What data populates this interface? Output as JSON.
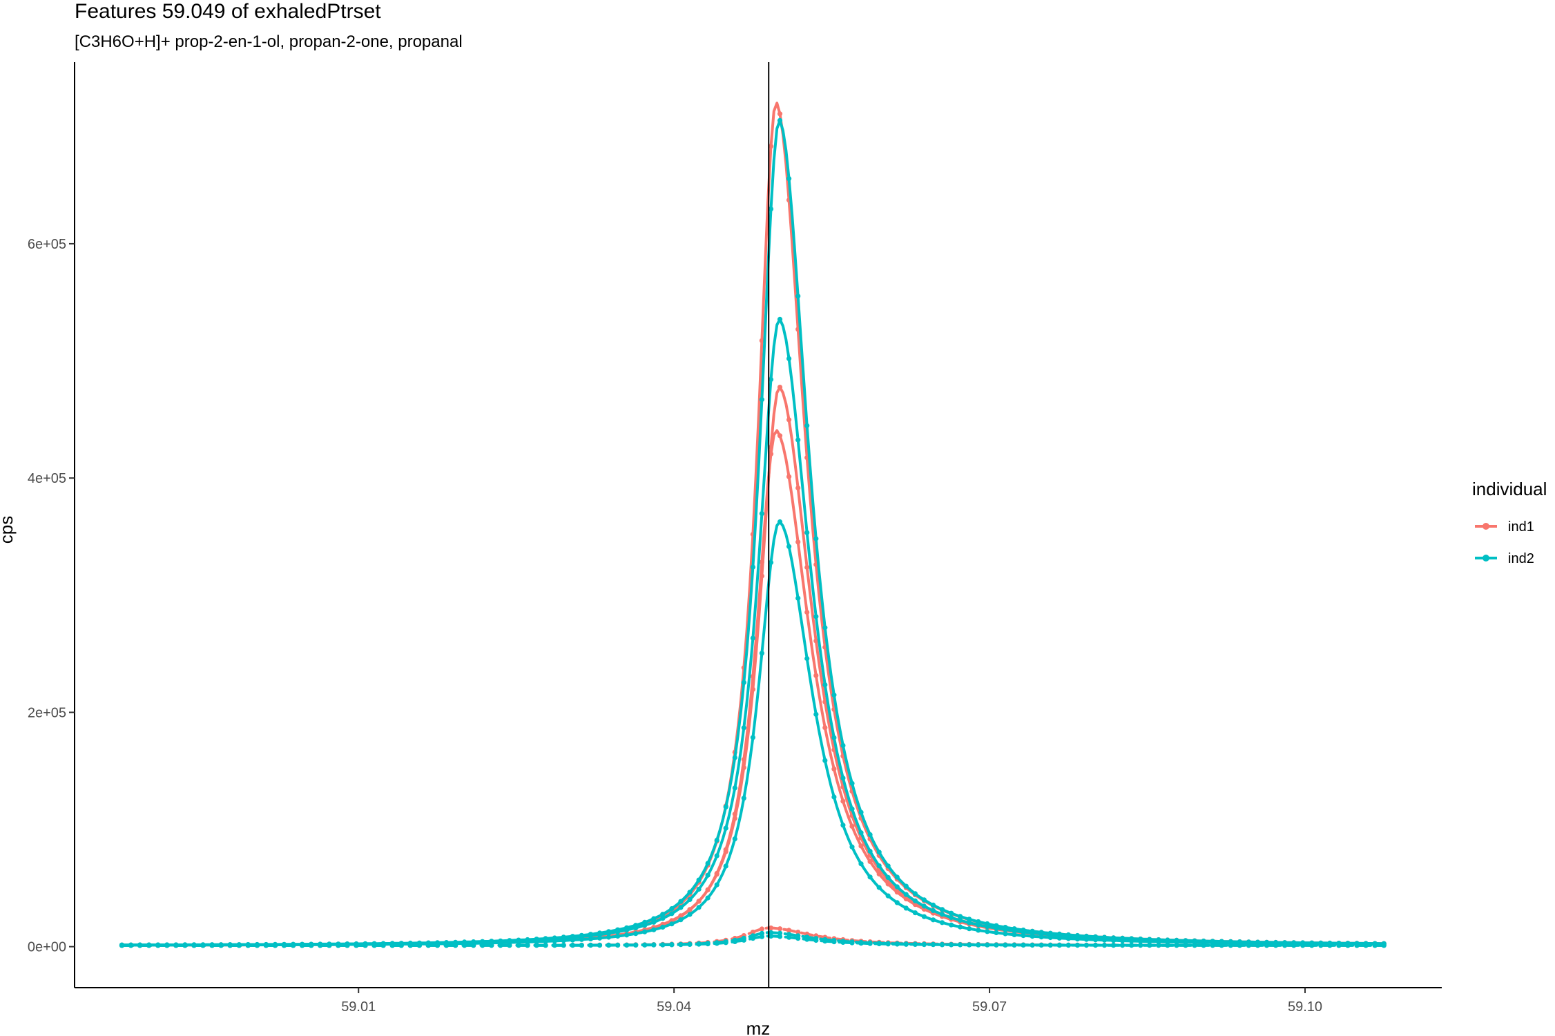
{
  "chart_data": {
    "type": "line",
    "title": "Features 59.049 of exhaledPtrset",
    "subtitle": "[C3H6O+H]+ prop-2-en-1-ol, propan-2-one, propanal",
    "xlabel": "mz",
    "ylabel": "cps",
    "xlim": [
      58.983,
      59.113
    ],
    "ylim": [
      -35000,
      755000
    ],
    "x_ticks": [
      {
        "value": 59.01,
        "label": "59.01"
      },
      {
        "value": 59.04,
        "label": "59.04"
      },
      {
        "value": 59.07,
        "label": "59.07"
      },
      {
        "value": 59.1,
        "label": "59.10"
      }
    ],
    "y_ticks": [
      {
        "value": 0,
        "label": "0e+00"
      },
      {
        "value": 200000,
        "label": "2e+05"
      },
      {
        "value": 400000,
        "label": "4e+05"
      },
      {
        "value": 600000,
        "label": "6e+05"
      }
    ],
    "reference_line": {
      "x": 59.049
    },
    "x_range": [
      58.9875,
      59.1075
    ],
    "legend": {
      "title": "individual",
      "placement": "right",
      "entries": [
        {
          "name": "ind1",
          "color": "#F8766D"
        },
        {
          "name": "ind2",
          "color": "#00BFC4"
        }
      ]
    },
    "series": [
      {
        "name": "ind1",
        "color": "#F8766D",
        "style": "solid",
        "peak_x": 59.0497,
        "peak_y": 720000,
        "left_width": 0.0028,
        "right_width": 0.0045
      },
      {
        "name": "ind1",
        "color": "#F8766D",
        "style": "solid",
        "peak_x": 59.05,
        "peak_y": 477000,
        "left_width": 0.003,
        "right_width": 0.005
      },
      {
        "name": "ind1",
        "color": "#F8766D",
        "style": "solid",
        "peak_x": 59.0497,
        "peak_y": 440000,
        "left_width": 0.003,
        "right_width": 0.0052
      },
      {
        "name": "ind1",
        "color": "#F8766D",
        "style": "dashed",
        "peak_x": 59.049,
        "peak_y": 15000,
        "left_width": 0.0035,
        "right_width": 0.0065
      },
      {
        "name": "ind2",
        "color": "#00BFC4",
        "style": "solid",
        "peak_x": 59.05,
        "peak_y": 705000,
        "left_width": 0.003,
        "right_width": 0.0045
      },
      {
        "name": "ind2",
        "color": "#00BFC4",
        "style": "solid",
        "peak_x": 59.05,
        "peak_y": 535000,
        "left_width": 0.0032,
        "right_width": 0.0048
      },
      {
        "name": "ind2",
        "color": "#00BFC4",
        "style": "solid",
        "peak_x": 59.05,
        "peak_y": 362000,
        "left_width": 0.0032,
        "right_width": 0.005
      },
      {
        "name": "ind2",
        "color": "#00BFC4",
        "style": "dashed",
        "peak_x": 59.049,
        "peak_y": 11000,
        "left_width": 0.0035,
        "right_width": 0.0065
      },
      {
        "name": "ind2",
        "color": "#00BFC4",
        "style": "dashed",
        "peak_x": 59.049,
        "peak_y": 8000,
        "left_width": 0.0035,
        "right_width": 0.0065
      }
    ]
  }
}
